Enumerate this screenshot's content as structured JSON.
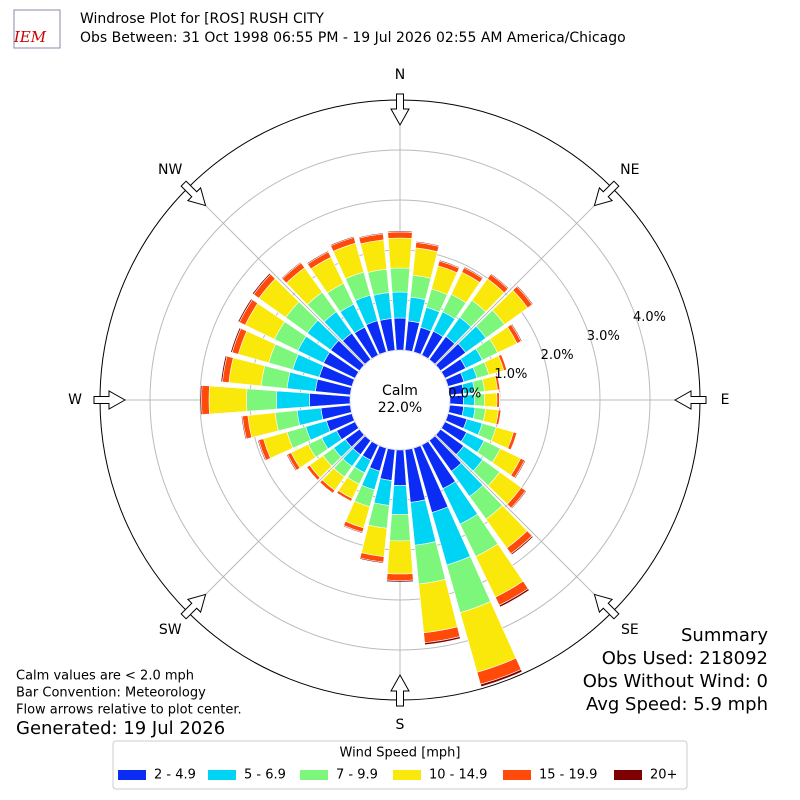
{
  "header": {
    "logo": "IEM",
    "title": "Windrose Plot for [ROS] RUSH CITY",
    "subtitle": "Obs Between: 31 Oct 1998 06:55 PM - 19 Jul 2026 02:55 AM America/Chicago"
  },
  "chart_data": {
    "type": "windrose",
    "directions": [
      0,
      10,
      20,
      30,
      40,
      50,
      60,
      70,
      80,
      90,
      100,
      110,
      120,
      130,
      140,
      150,
      160,
      170,
      180,
      190,
      200,
      210,
      220,
      230,
      240,
      250,
      260,
      270,
      280,
      290,
      300,
      310,
      320,
      330,
      340,
      350
    ],
    "compass_labels": [
      "N",
      "NE",
      "E",
      "SE",
      "S",
      "SW",
      "W",
      "NW"
    ],
    "ylim": [
      0,
      5
    ],
    "yticks": [
      {
        "value": 0,
        "label": "0.0%"
      },
      {
        "value": 1,
        "label": "1.0%"
      },
      {
        "value": 2,
        "label": "2.0%"
      },
      {
        "value": 3,
        "label": "3.0%"
      },
      {
        "value": 4,
        "label": "4.0%"
      }
    ],
    "calm": {
      "label": "Calm",
      "value": "22.0%"
    },
    "legend_title": "Wind Speed [mph]",
    "series": [
      {
        "name": "2 - 4.9",
        "color": "#0a2cf5",
        "values": [
          0.64,
          0.59,
          0.51,
          0.53,
          0.57,
          0.62,
          0.46,
          0.33,
          0.28,
          0.27,
          0.28,
          0.39,
          0.48,
          0.57,
          0.76,
          0.97,
          1.34,
          1.06,
          0.71,
          0.62,
          0.48,
          0.34,
          0.35,
          0.35,
          0.41,
          0.53,
          0.59,
          0.81,
          0.7,
          0.68,
          0.7,
          0.71,
          0.65,
          0.62,
          0.65,
          0.64
        ]
      },
      {
        "name": "5 - 6.9",
        "color": "#00d4f5",
        "values": [
          0.52,
          0.48,
          0.42,
          0.43,
          0.47,
          0.5,
          0.37,
          0.27,
          0.22,
          0.22,
          0.23,
          0.32,
          0.39,
          0.47,
          0.62,
          0.79,
          1.09,
          0.86,
          0.58,
          0.5,
          0.39,
          0.28,
          0.29,
          0.29,
          0.33,
          0.43,
          0.48,
          0.66,
          0.57,
          0.55,
          0.57,
          0.58,
          0.53,
          0.51,
          0.53,
          0.52
        ]
      },
      {
        "name": "7 - 9.9",
        "color": "#7cf77c",
        "values": [
          0.48,
          0.44,
          0.38,
          0.39,
          0.42,
          0.46,
          0.34,
          0.25,
          0.2,
          0.2,
          0.21,
          0.29,
          0.36,
          0.42,
          0.56,
          0.72,
          0.99,
          0.78,
          0.53,
          0.46,
          0.35,
          0.25,
          0.26,
          0.26,
          0.3,
          0.39,
          0.44,
          0.6,
          0.52,
          0.5,
          0.52,
          0.53,
          0.48,
          0.46,
          0.48,
          0.47
        ]
      },
      {
        "name": "10 - 14.9",
        "color": "#fae80a",
        "values": [
          0.6,
          0.55,
          0.48,
          0.49,
          0.53,
          0.57,
          0.43,
          0.31,
          0.26,
          0.25,
          0.26,
          0.36,
          0.45,
          0.53,
          0.71,
          0.9,
          1.24,
          0.98,
          0.66,
          0.57,
          0.44,
          0.32,
          0.33,
          0.33,
          0.38,
          0.49,
          0.55,
          0.75,
          0.65,
          0.63,
          0.65,
          0.66,
          0.6,
          0.58,
          0.6,
          0.59
        ]
      },
      {
        "name": "15 - 19.9",
        "color": "#ff4a0a",
        "values": [
          0.12,
          0.11,
          0.1,
          0.1,
          0.11,
          0.11,
          0.09,
          0.06,
          0.05,
          0.05,
          0.05,
          0.07,
          0.09,
          0.11,
          0.14,
          0.18,
          0.25,
          0.2,
          0.13,
          0.11,
          0.09,
          0.06,
          0.07,
          0.07,
          0.08,
          0.1,
          0.11,
          0.15,
          0.13,
          0.13,
          0.13,
          0.13,
          0.12,
          0.12,
          0.12,
          0.12
        ]
      },
      {
        "name": "20+",
        "color": "#7f0000",
        "values": [
          0.02,
          0.02,
          0.02,
          0.02,
          0.02,
          0.02,
          0.02,
          0.01,
          0.01,
          0.01,
          0.01,
          0.01,
          0.02,
          0.02,
          0.03,
          0.04,
          0.05,
          0.04,
          0.03,
          0.02,
          0.02,
          0.01,
          0.01,
          0.01,
          0.02,
          0.02,
          0.02,
          0.03,
          0.03,
          0.03,
          0.03,
          0.03,
          0.02,
          0.02,
          0.02,
          0.02
        ]
      }
    ]
  },
  "summary": [
    "Summary",
    "Obs Used: 218092",
    "Obs Without Wind: 0",
    "Avg Speed: 5.9 mph"
  ],
  "notes": [
    "Calm values are < 2.0 mph",
    "Bar Convention: Meteorology",
    "Flow arrows relative to plot center."
  ],
  "generated": "Generated: 19 Jul 2026"
}
